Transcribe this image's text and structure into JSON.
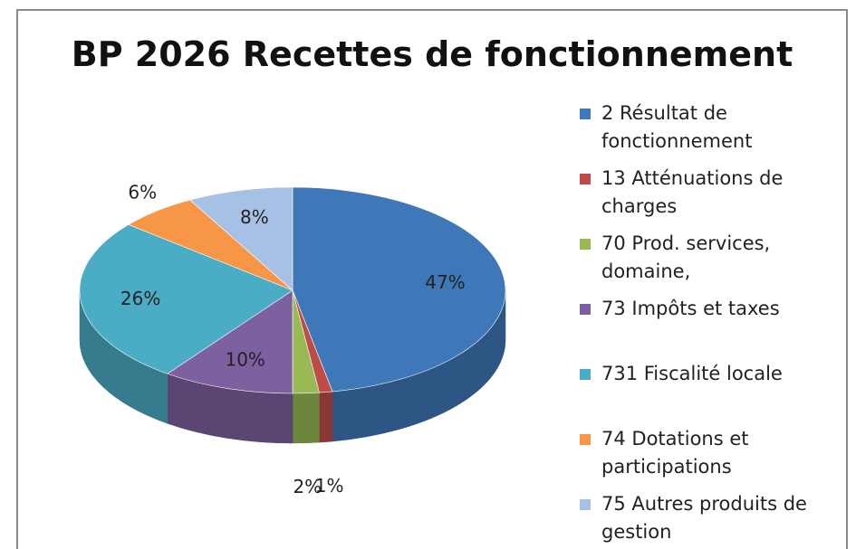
{
  "chart_data": {
    "type": "pie",
    "title": "BP 2026 Recettes de fonctionnement",
    "categories": [
      "2 Résultat de fonctionnement",
      "13 Atténuations de charges",
      "70 Prod. services, domaine,",
      "73 Impôts et taxes",
      "731 Fiscalité locale",
      "74 Dotations et participations",
      "75 Autres produits de gestion"
    ],
    "values": [
      47,
      1,
      2,
      10,
      26,
      6,
      8
    ],
    "value_labels": [
      "47%",
      "1%",
      "2%",
      "10%",
      "26%",
      "6%",
      "8%"
    ],
    "colors": [
      "#3f78b8",
      "#be4b48",
      "#98b954",
      "#7d60a0",
      "#4bacc6",
      "#f79646",
      "#a7c0e6"
    ],
    "legend": "right"
  }
}
